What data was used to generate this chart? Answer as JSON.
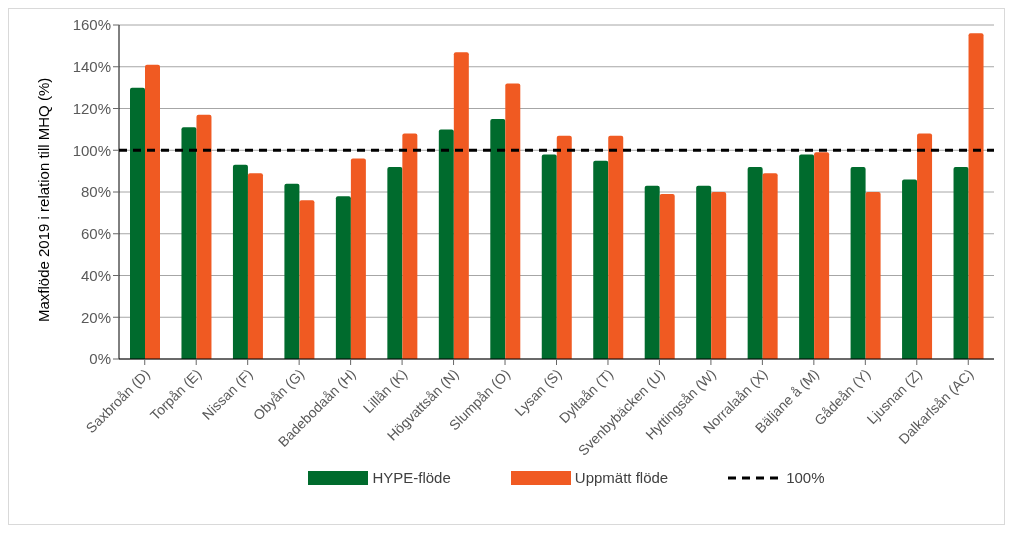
{
  "chart_data": {
    "type": "bar",
    "ylabel": "Maxflöde 2019 i relation till MHQ (%)",
    "categories": [
      "Saxbroån (D)",
      "Torpån (E)",
      "Nissan (F)",
      "Obyån (G)",
      "Badebodaån (H)",
      "Lillån (K)",
      "Högvattsån (N)",
      "Slumpån (O)",
      "Lysan (S)",
      "Dyltaån (T)",
      "Svenbybäcken (U)",
      "Hyttingsån (W)",
      "Norralaån (X)",
      "Bäljane å (M)",
      "Gådeån (Y)",
      "Ljusnan (Z)",
      "Dalkarlsån (AC)"
    ],
    "series": [
      {
        "name": "HYPE-flöde",
        "color": "#006b2d",
        "values": [
          130,
          111,
          93,
          84,
          78,
          92,
          110,
          115,
          98,
          95,
          83,
          83,
          92,
          98,
          92,
          86,
          92
        ]
      },
      {
        "name": "Uppmätt flöde",
        "color": "#f05a22",
        "values": [
          141,
          117,
          89,
          76,
          96,
          108,
          147,
          132,
          107,
          107,
          79,
          80,
          89,
          99,
          80,
          108,
          156
        ]
      }
    ],
    "ylim": [
      0,
      160
    ],
    "yticks": [
      {
        "value": 0,
        "label": "0%"
      },
      {
        "value": 20,
        "label": "20%"
      },
      {
        "value": 40,
        "label": "40%"
      },
      {
        "value": 60,
        "label": "60%"
      },
      {
        "value": 80,
        "label": "80%"
      },
      {
        "value": 100,
        "label": "100%"
      },
      {
        "value": 120,
        "label": "120%"
      },
      {
        "value": 140,
        "label": "140%"
      },
      {
        "value": 160,
        "label": "160%"
      }
    ],
    "ref_lines": [
      {
        "axis": "y",
        "value": 100,
        "label": "100%",
        "color": "#000000",
        "line_style": "dashed"
      }
    ],
    "grid": "y",
    "legend": "bottom"
  }
}
